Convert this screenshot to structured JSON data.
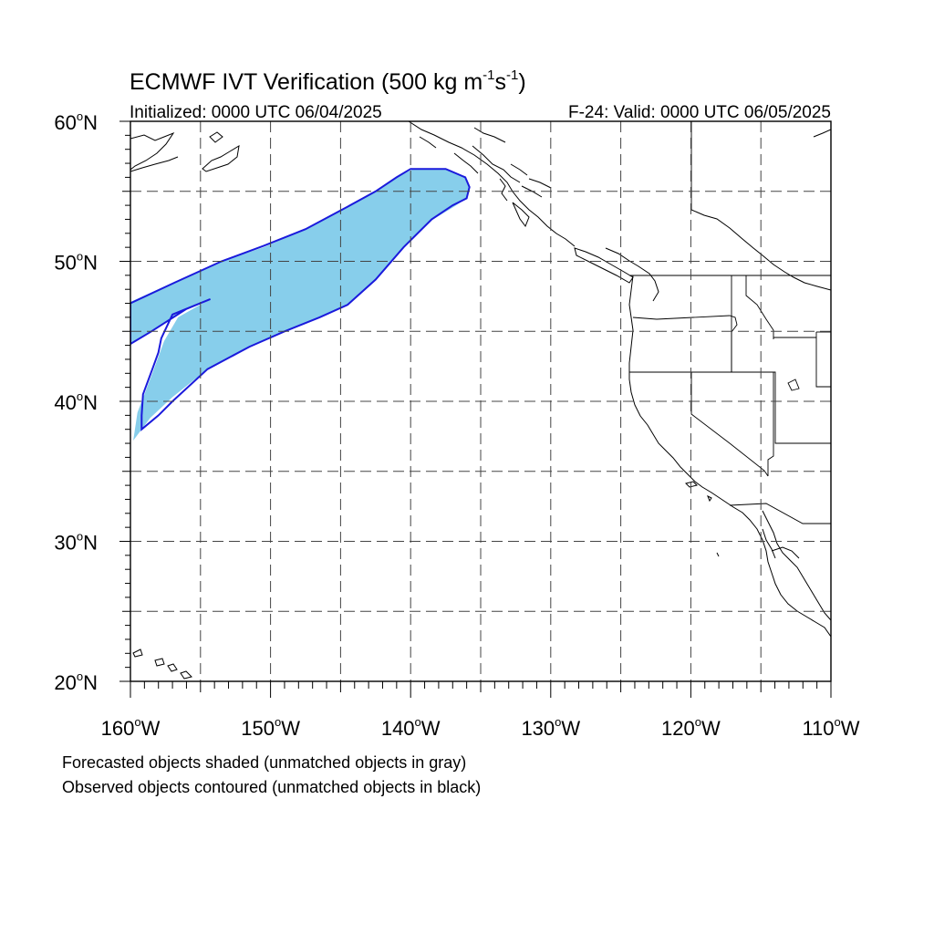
{
  "title": {
    "main": "ECMWF IVT Verification (500 kg m",
    "sup1": "-1",
    "mid": "s",
    "sup2": "-1",
    "end": ")"
  },
  "subtitle_left": "Initialized: 0000 UTC 06/04/2025",
  "subtitle_right": "F-24: Valid: 0000 UTC 06/05/2025",
  "lat_labels": [
    "60",
    "50",
    "40",
    "30",
    "20"
  ],
  "lon_labels": [
    "160",
    "150",
    "140",
    "130",
    "120",
    "110"
  ],
  "lat_suffix": "N",
  "lon_suffix": "W",
  "degree": "o",
  "notes": [
    "Forecasted objects shaded (unmatched objects in gray)",
    "Observed objects contoured (unmatched objects in black)"
  ],
  "colors": {
    "forecast_fill": "#87ceeb",
    "observed_contour": "#1a1adc",
    "coastline": "#000000"
  },
  "chart_data": {
    "type": "map",
    "region": "North Pacific / US West Coast",
    "lon_range": [
      -160,
      -110
    ],
    "lat_range": [
      20,
      60
    ],
    "grid_lon_step": 5,
    "grid_lat_step": 5,
    "forecast_object": {
      "color": "#87ceeb",
      "polygon": [
        [
          -160.0,
          47.1
        ],
        [
          -156.5,
          48.7
        ],
        [
          -153.5,
          50.0
        ],
        [
          -150.5,
          51.0
        ],
        [
          -147.5,
          52.3
        ],
        [
          -144.5,
          53.9
        ],
        [
          -142.5,
          55.0
        ],
        [
          -141.0,
          56.0
        ],
        [
          -139.8,
          56.6
        ],
        [
          -137.5,
          56.6
        ],
        [
          -136.1,
          56.0
        ],
        [
          -135.8,
          55.3
        ],
        [
          -136.0,
          54.5
        ],
        [
          -136.9,
          53.9
        ],
        [
          -138.4,
          53.0
        ],
        [
          -140.5,
          51.0
        ],
        [
          -142.5,
          48.7
        ],
        [
          -144.5,
          46.9
        ],
        [
          -146.5,
          46.0
        ],
        [
          -149.0,
          45.0
        ],
        [
          -151.5,
          43.9
        ],
        [
          -154.5,
          42.3
        ],
        [
          -157.0,
          40.3
        ],
        [
          -158.6,
          38.8
        ],
        [
          -159.8,
          37.2
        ],
        [
          -159.5,
          39.2
        ],
        [
          -158.4,
          42.1
        ],
        [
          -157.6,
          44.3
        ],
        [
          -156.6,
          46.0
        ],
        [
          -154.3,
          47.3
        ],
        [
          -156.2,
          46.5
        ],
        [
          -160.0,
          44.1
        ]
      ]
    },
    "observed_object": {
      "color": "#1a1adc",
      "polygon": [
        [
          -160.0,
          47.0
        ],
        [
          -156.8,
          48.5
        ],
        [
          -153.5,
          50.0
        ],
        [
          -150.5,
          51.1
        ],
        [
          -147.5,
          52.3
        ],
        [
          -144.5,
          53.9
        ],
        [
          -142.5,
          55.0
        ],
        [
          -141.0,
          56.0
        ],
        [
          -140.0,
          56.6
        ],
        [
          -137.5,
          56.6
        ],
        [
          -136.1,
          56.0
        ],
        [
          -135.8,
          55.3
        ],
        [
          -136.0,
          54.5
        ],
        [
          -137.0,
          54.0
        ],
        [
          -138.5,
          53.0
        ],
        [
          -140.5,
          51.0
        ],
        [
          -142.5,
          48.7
        ],
        [
          -144.5,
          46.9
        ],
        [
          -146.5,
          46.0
        ],
        [
          -149.0,
          45.0
        ],
        [
          -151.5,
          43.9
        ],
        [
          -154.5,
          42.3
        ],
        [
          -157.0,
          40.0
        ],
        [
          -158.0,
          39.0
        ],
        [
          -159.2,
          38.0
        ],
        [
          -159.2,
          39.0
        ],
        [
          -159.1,
          40.5
        ],
        [
          -158.4,
          42.4
        ],
        [
          -158.0,
          43.5
        ],
        [
          -157.8,
          44.5
        ],
        [
          -157.0,
          46.2
        ],
        [
          -154.3,
          47.3
        ],
        [
          -156.0,
          46.6
        ],
        [
          -158.5,
          45.0
        ],
        [
          -160.0,
          44.1
        ]
      ]
    }
  }
}
